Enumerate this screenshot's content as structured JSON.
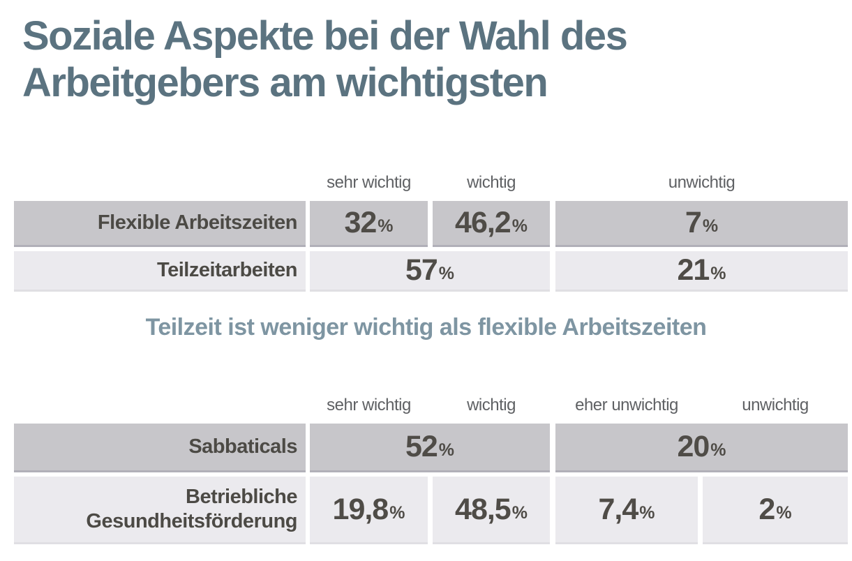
{
  "title": {
    "line1": "Soziale Aspekte bei der Wahl des",
    "line2": "Arbeitgebers am wichtigsten"
  },
  "subtitle": "Teilzeit ist weniger wichtig als flexible Arbeitszeiten",
  "ui": {
    "percent": "%"
  },
  "colors": {
    "title": "#5b7380",
    "subtitle": "#7e95a2",
    "row_dark": "#c7c6ca",
    "row_light": "#ebeaee",
    "value_text": "#4f4c47",
    "header_text": "#5f6164"
  },
  "table1": {
    "headers": {
      "h1": "sehr wichtig",
      "h2": "wichtig",
      "h3": "unwichtig"
    },
    "row1": {
      "label": "Flexible Arbeitszeiten",
      "v1": "32",
      "v2": "46,2",
      "v3": "7"
    },
    "row2": {
      "label": "Teilzeitarbeiten",
      "v12": "57",
      "v34": "21"
    }
  },
  "table2": {
    "headers": {
      "h1": "sehr wichtig",
      "h2": "wichtig",
      "h3": "eher unwichtig",
      "h4": "unwichtig"
    },
    "row1": {
      "label": "Sabbaticals",
      "v12": "52",
      "v34": "20"
    },
    "row2": {
      "label": "Betriebliche Gesundheitsförderung",
      "v1": "19,8",
      "v2": "48,5",
      "v3": "7,4",
      "v4": "2"
    }
  },
  "chart_data": [
    {
      "type": "table",
      "title": "Soziale Aspekte bei der Wahl des Arbeitgebers am wichtigsten",
      "columns": [
        "sehr wichtig",
        "wichtig",
        "unwichtig"
      ],
      "unit": "%",
      "rows": [
        {
          "label": "Flexible Arbeitszeiten",
          "values": {
            "sehr wichtig": 32,
            "wichtig": 46.2,
            "unwichtig": 7
          }
        },
        {
          "label": "Teilzeitarbeiten",
          "values": {
            "sehr wichtig + wichtig": 57,
            "unwichtig": 21
          }
        }
      ],
      "annotation": "Teilzeit ist weniger wichtig als flexible Arbeitszeiten"
    },
    {
      "type": "table",
      "columns": [
        "sehr wichtig",
        "wichtig",
        "eher unwichtig",
        "unwichtig"
      ],
      "unit": "%",
      "rows": [
        {
          "label": "Sabbaticals",
          "values": {
            "sehr wichtig + wichtig": 52,
            "eher unwichtig + unwichtig": 20
          }
        },
        {
          "label": "Betriebliche Gesundheitsförderung",
          "values": {
            "sehr wichtig": 19.8,
            "wichtig": 48.5,
            "eher unwichtig": 7.4,
            "unwichtig": 2
          }
        }
      ]
    }
  ]
}
